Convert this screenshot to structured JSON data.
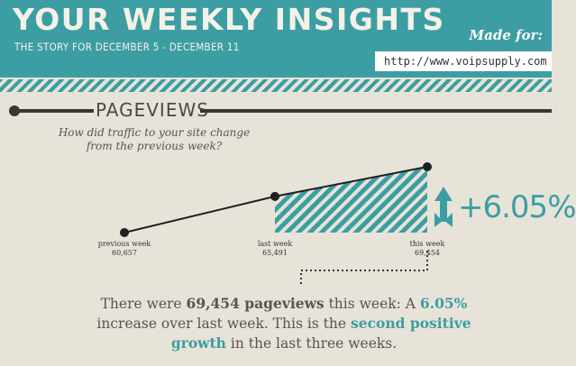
{
  "header": {
    "title": "YOUR WEEKLY INSIGHTS",
    "subtitle": "THE STORY FOR DECEMBER 5 - DECEMBER 11",
    "made_for_label": "Made for:",
    "url": "http://www.voipsupply.com"
  },
  "section": {
    "title": "PAGEVIEWS",
    "question": "How did traffic to your site change from the previous week?"
  },
  "chart_data": {
    "type": "line",
    "categories": [
      "previous week",
      "last week",
      "this week"
    ],
    "values": [
      60657,
      65491,
      69454
    ],
    "value_labels": [
      "60,657",
      "65,491",
      "69,454"
    ],
    "title": "",
    "xlabel": "",
    "ylabel": "",
    "change_label": "+6.05%",
    "colors": {
      "line": "#1f1f1f",
      "accent": "#3c9ea2"
    }
  },
  "summary": {
    "p1": "There were ",
    "views_bold": "69,454 pageviews",
    "p2": " this week: A ",
    "pct": "6.05%",
    "p3": " increase over last week. This is the ",
    "second": "second positive growth",
    "p4": " in the last three weeks."
  }
}
